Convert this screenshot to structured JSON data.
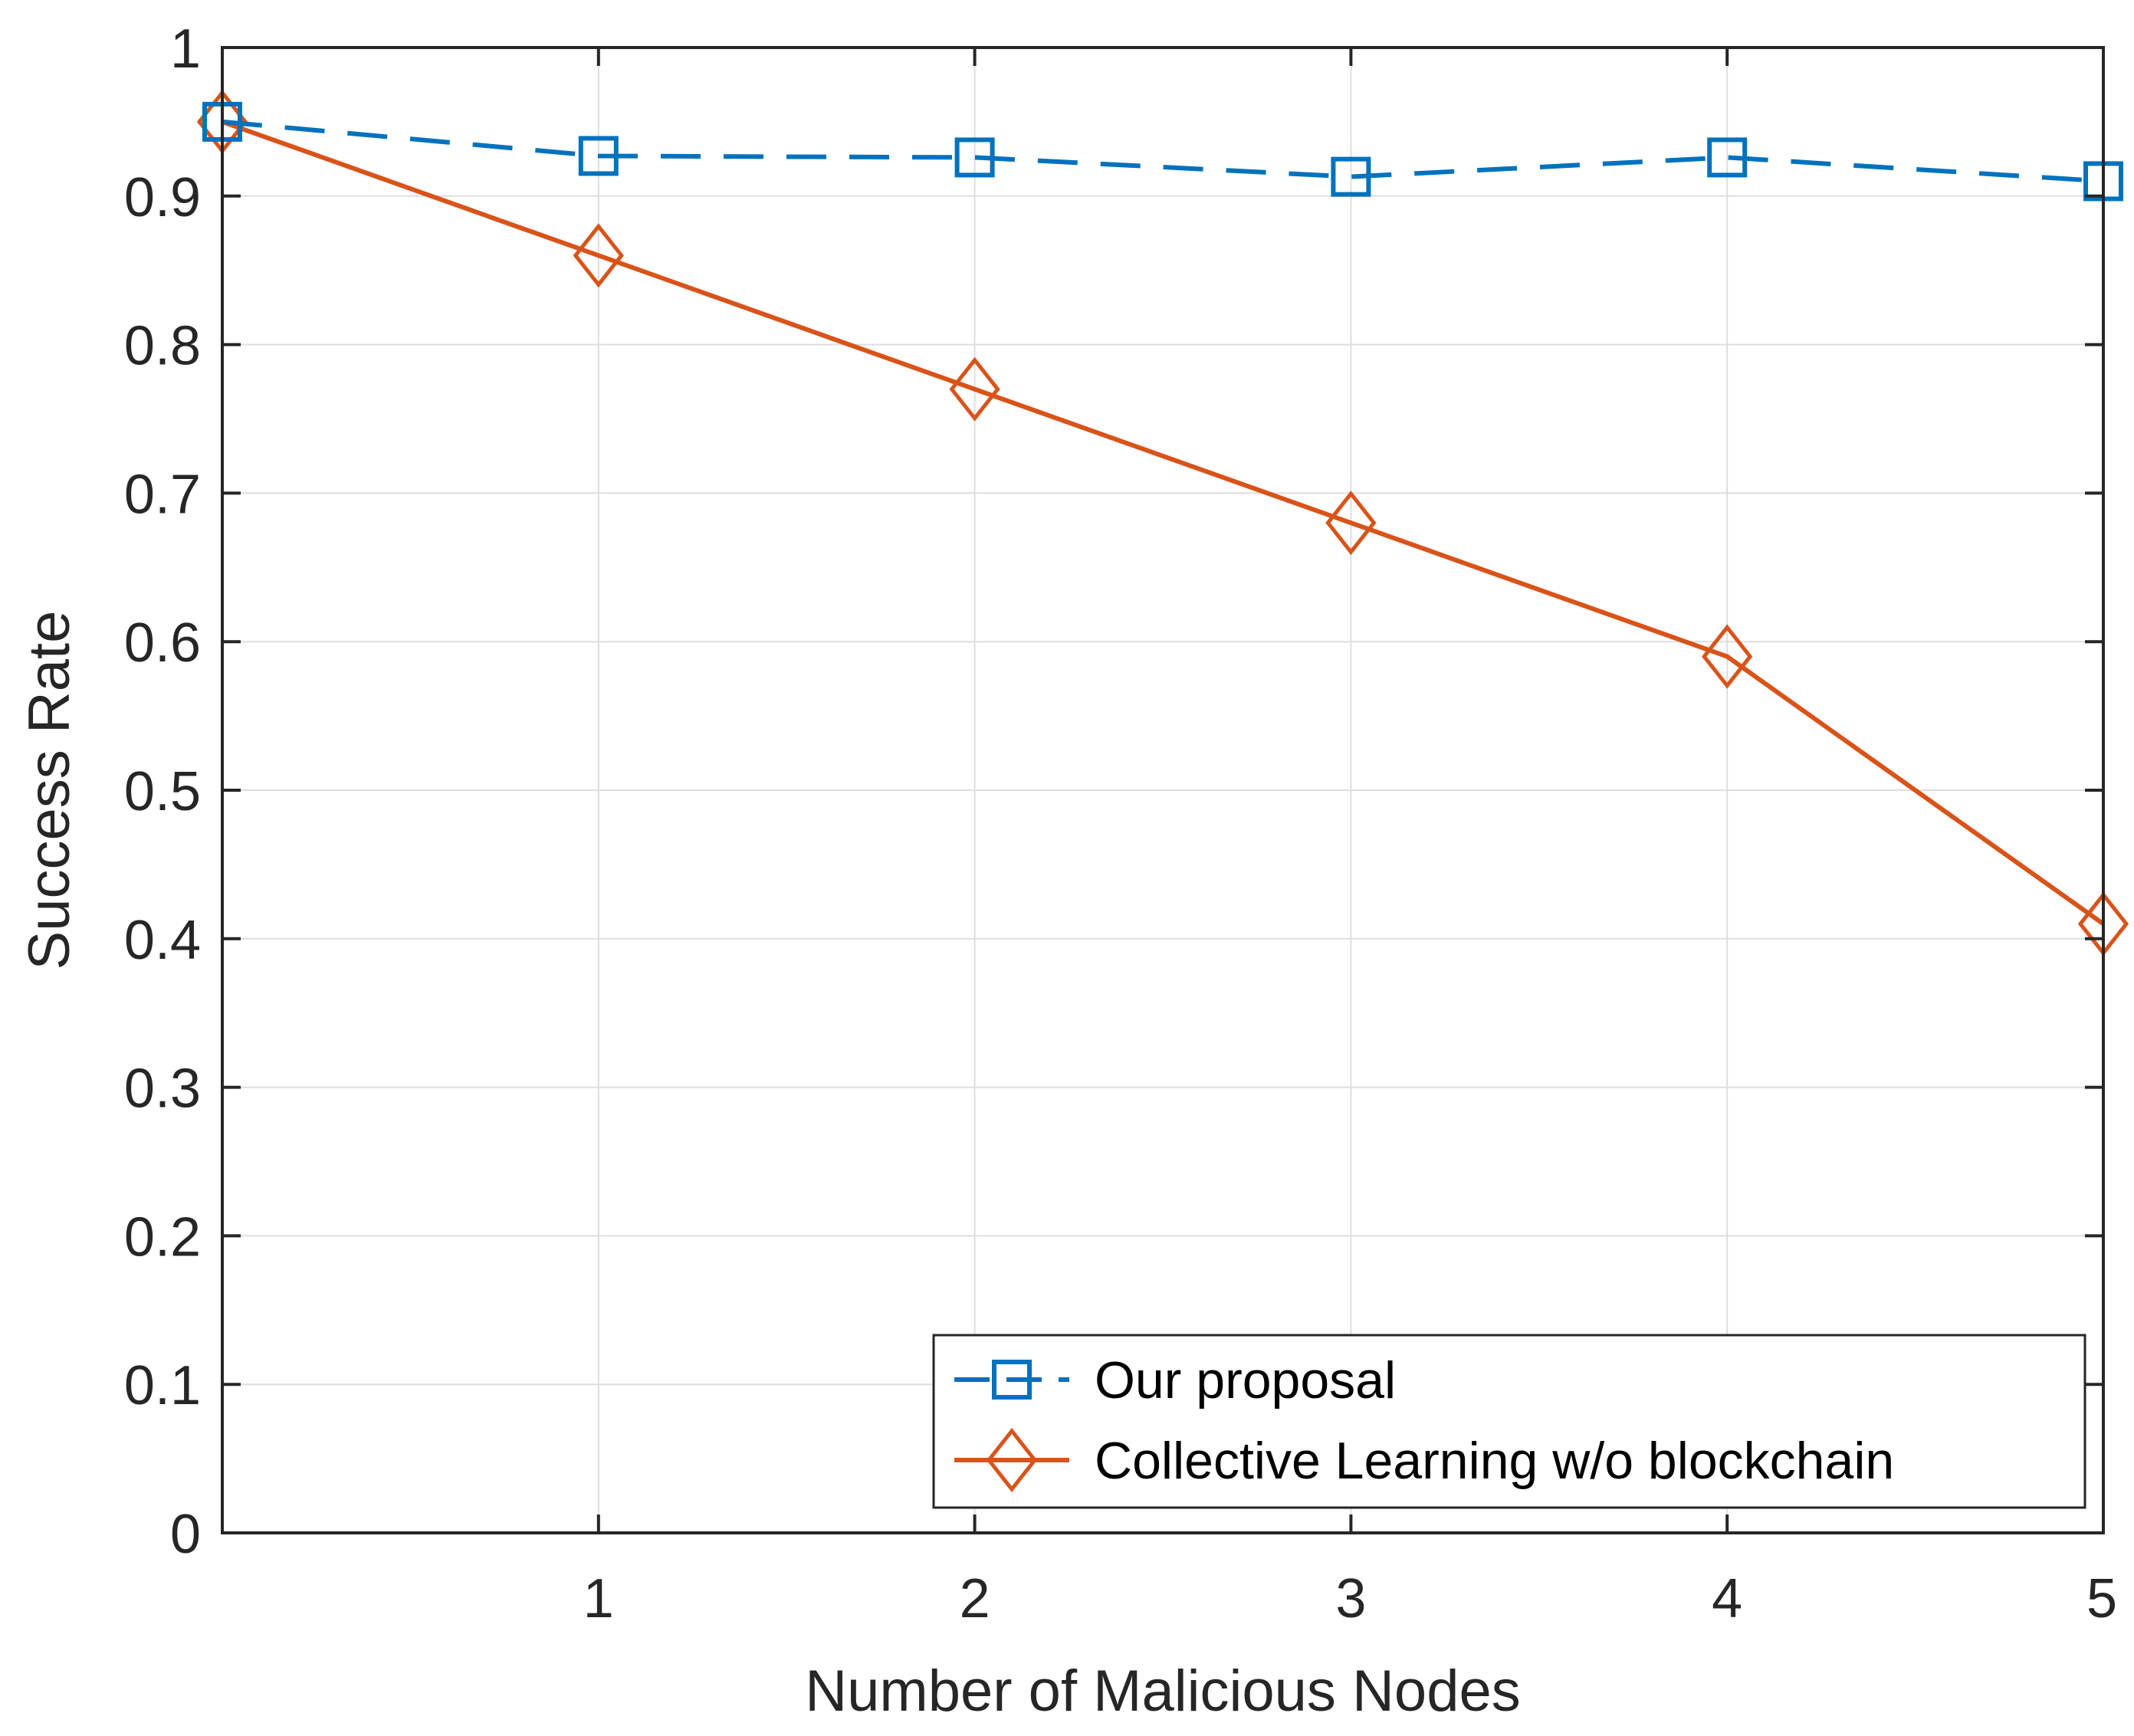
{
  "chart_data": {
    "type": "line",
    "title": "",
    "xlabel": "Number of Malicious Nodes",
    "ylabel": "Success Rate",
    "xlim": [
      0,
      5
    ],
    "ylim": [
      0,
      1
    ],
    "x_ticks": [
      1,
      2,
      3,
      4,
      5
    ],
    "x_tick_labels": [
      "1",
      "2",
      "3",
      "4",
      "5"
    ],
    "y_ticks": [
      0,
      0.1,
      0.2,
      0.3,
      0.4,
      0.5,
      0.6,
      0.7,
      0.8,
      0.9,
      1
    ],
    "y_tick_labels": [
      "0",
      "0.1",
      "0.2",
      "0.3",
      "0.4",
      "0.5",
      "0.6",
      "0.7",
      "0.8",
      "0.9",
      "1"
    ],
    "grid": true,
    "legend_position": "bottom-right",
    "series": [
      {
        "name": "Our proposal",
        "x": [
          0,
          1,
          2,
          3,
          4,
          5
        ],
        "values": [
          0.95,
          0.927,
          0.926,
          0.913,
          0.926,
          0.91
        ],
        "color": "#0072BD",
        "line_style": "dashed",
        "marker": "square"
      },
      {
        "name": "Collective Learning w/o blockchain",
        "x": [
          0,
          1,
          2,
          3,
          4,
          5
        ],
        "values": [
          0.95,
          0.86,
          0.77,
          0.68,
          0.59,
          0.41
        ],
        "color": "#D95319",
        "line_style": "solid",
        "marker": "diamond"
      }
    ]
  }
}
